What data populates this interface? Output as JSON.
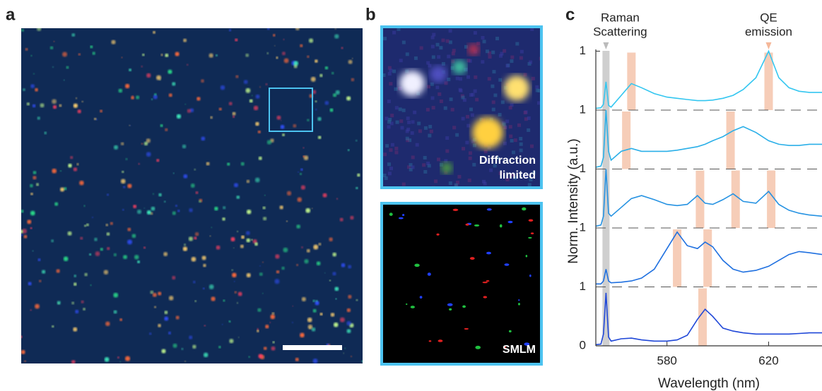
{
  "panels": {
    "a": {
      "label": "a"
    },
    "b": {
      "label": "b",
      "top_caption": [
        "Diffraction",
        "limited"
      ],
      "bottom_caption": "SMLM"
    },
    "c": {
      "label": "c"
    }
  },
  "chart_data": [
    {
      "type": "line",
      "annotations": [
        {
          "text": [
            "Raman",
            "Scattering"
          ],
          "x": 556
        },
        {
          "text": [
            "QE",
            "emission"
          ],
          "x": 620
        }
      ],
      "x": [
        552,
        554,
        555,
        556,
        557,
        558,
        562,
        566,
        570,
        575,
        580,
        584,
        588,
        592,
        595,
        598,
        602,
        606,
        610,
        615,
        620,
        624,
        628,
        632,
        636,
        641
      ],
      "series": [
        {
          "color": "#33c6f0",
          "values": [
            0.03,
            0.04,
            0.1,
            0.48,
            0.08,
            0.05,
            0.25,
            0.45,
            0.38,
            0.28,
            0.22,
            0.2,
            0.18,
            0.16,
            0.16,
            0.17,
            0.2,
            0.25,
            0.35,
            0.55,
            1.0,
            0.55,
            0.38,
            0.32,
            0.3,
            0.3
          ]
        }
      ],
      "highlights": [
        566,
        620
      ],
      "xlim": [
        552,
        641
      ],
      "ylim": [
        0,
        1
      ],
      "yticks": [
        1
      ],
      "grid": false
    },
    {
      "type": "line",
      "x": [
        552,
        554,
        555,
        556,
        557,
        558,
        562,
        566,
        570,
        575,
        580,
        584,
        588,
        592,
        595,
        598,
        602,
        606,
        610,
        615,
        620,
        624,
        628,
        632,
        636,
        641
      ],
      "series": [
        {
          "color": "#2aafe8",
          "values": [
            0.03,
            0.05,
            0.2,
            1.0,
            0.3,
            0.15,
            0.3,
            0.35,
            0.3,
            0.3,
            0.3,
            0.32,
            0.35,
            0.38,
            0.42,
            0.48,
            0.55,
            0.65,
            0.72,
            0.62,
            0.48,
            0.42,
            0.4,
            0.4,
            0.42,
            0.42
          ]
        }
      ],
      "highlights": [
        564,
        605
      ],
      "xlim": [
        552,
        641
      ],
      "ylim": [
        0,
        1
      ],
      "yticks": [
        1
      ],
      "grid": true
    },
    {
      "type": "line",
      "x": [
        552,
        554,
        555,
        556,
        557,
        558,
        562,
        566,
        570,
        575,
        580,
        584,
        588,
        592,
        595,
        598,
        602,
        606,
        610,
        615,
        620,
        624,
        628,
        632,
        636,
        641
      ],
      "series": [
        {
          "color": "#2592e2",
          "values": [
            0.03,
            0.05,
            0.2,
            1.0,
            0.25,
            0.2,
            0.35,
            0.5,
            0.55,
            0.48,
            0.4,
            0.38,
            0.4,
            0.55,
            0.42,
            0.4,
            0.48,
            0.58,
            0.45,
            0.42,
            0.62,
            0.4,
            0.3,
            0.25,
            0.22,
            0.2
          ]
        }
      ],
      "highlights": [
        593,
        607,
        621
      ],
      "xlim": [
        552,
        641
      ],
      "ylim": [
        0,
        1
      ],
      "yticks": [
        1
      ],
      "grid": true
    },
    {
      "type": "line",
      "x": [
        552,
        554,
        555,
        556,
        557,
        558,
        562,
        566,
        570,
        575,
        580,
        584,
        588,
        592,
        595,
        598,
        602,
        606,
        610,
        615,
        620,
        624,
        628,
        632,
        636,
        641
      ],
      "series": [
        {
          "color": "#1f70e0",
          "values": [
            0.05,
            0.05,
            0.1,
            0.3,
            0.1,
            0.07,
            0.08,
            0.1,
            0.15,
            0.3,
            0.65,
            0.93,
            0.7,
            0.65,
            0.76,
            0.68,
            0.45,
            0.3,
            0.25,
            0.28,
            0.35,
            0.45,
            0.55,
            0.6,
            0.58,
            0.55
          ]
        }
      ],
      "highlights": [
        584,
        596
      ],
      "xlim": [
        552,
        641
      ],
      "ylim": [
        0,
        1
      ],
      "yticks": [
        1
      ],
      "grid": true
    },
    {
      "type": "line",
      "x_label": "Wavelength (nm)",
      "y_label": "Norm. Intensity (a.u.)",
      "x": [
        552,
        554,
        555,
        556,
        557,
        558,
        562,
        566,
        570,
        575,
        580,
        584,
        588,
        592,
        595,
        598,
        602,
        606,
        610,
        615,
        620,
        624,
        628,
        632,
        636,
        641
      ],
      "series": [
        {
          "color": "#1f47d8",
          "values": [
            0.02,
            0.03,
            0.2,
            0.9,
            0.15,
            0.08,
            0.12,
            0.13,
            0.1,
            0.08,
            0.08,
            0.1,
            0.18,
            0.45,
            0.62,
            0.5,
            0.3,
            0.25,
            0.22,
            0.2,
            0.2,
            0.2,
            0.2,
            0.21,
            0.22,
            0.22
          ]
        }
      ],
      "highlights": [
        594
      ],
      "xlim": [
        552,
        641
      ],
      "ylim": [
        0,
        1
      ],
      "yticks": [
        0,
        1
      ],
      "xticks": [
        580,
        620
      ],
      "grid": true
    }
  ]
}
